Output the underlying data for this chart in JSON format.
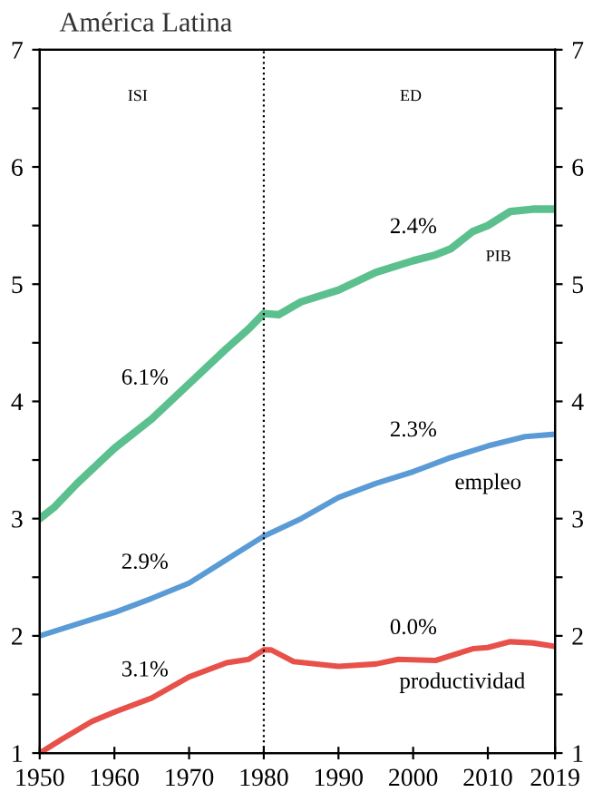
{
  "chart_data": {
    "type": "line",
    "title": "América Latina",
    "x": [
      1950,
      1952,
      1955,
      1960,
      1965,
      1970,
      1975,
      1978,
      1980,
      1982,
      1985,
      1990,
      1995,
      2000,
      2003,
      2005,
      2008,
      2010,
      2013,
      2016,
      2019
    ],
    "series": [
      {
        "color": "#5cc08e",
        "values": [
          3.0,
          3.1,
          3.3,
          3.6,
          3.85,
          4.15,
          4.45,
          4.62,
          4.75,
          4.74,
          4.85,
          4.95,
          5.1,
          5.2,
          5.25,
          5.3,
          5.45,
          5.5,
          5.62,
          5.64,
          5.64
        ]
      },
      {
        "color": "#5b9bd5",
        "x": [
          1950,
          1955,
          1960,
          1965,
          1970,
          1975,
          1980,
          1985,
          1990,
          1995,
          2000,
          2005,
          2010,
          2015,
          2019
        ],
        "values": [
          2.0,
          2.1,
          2.2,
          2.32,
          2.45,
          2.65,
          2.85,
          3.0,
          3.18,
          3.3,
          3.4,
          3.52,
          3.62,
          3.7,
          3.72
        ]
      },
      {
        "color": "#e8504a",
        "x": [
          1950,
          1953,
          1957,
          1960,
          1965,
          1970,
          1975,
          1978,
          1980,
          1981,
          1984,
          1990,
          1995,
          1998,
          2003,
          2008,
          2010,
          2013,
          2016,
          2019
        ],
        "values": [
          1.0,
          1.12,
          1.27,
          1.35,
          1.47,
          1.65,
          1.77,
          1.8,
          1.88,
          1.88,
          1.78,
          1.74,
          1.76,
          1.8,
          1.79,
          1.89,
          1.9,
          1.95,
          1.94,
          1.91
        ]
      }
    ],
    "xlim": [
      1950,
      2019
    ],
    "xticks": [
      1950,
      1960,
      1970,
      1980,
      1990,
      2000,
      2010,
      2019
    ],
    "ylim": [
      1,
      7
    ],
    "yticks": [
      1,
      {
        "value": 1.5,
        "label": null
      },
      2,
      {
        "value": 2.5,
        "label": null
      },
      3,
      {
        "value": 3.5,
        "label": null
      },
      4,
      {
        "value": 4.5,
        "label": null
      },
      5,
      {
        "value": 5.5,
        "label": null
      },
      6,
      {
        "value": 6.5,
        "label": null
      },
      7
    ],
    "y2lim": [
      1,
      7
    ],
    "y2ticks": [
      1,
      {
        "value": 1.5,
        "label": null
      },
      2,
      {
        "value": 2.5,
        "label": null
      },
      3,
      {
        "value": 3.5,
        "label": null
      },
      4,
      {
        "value": 4.5,
        "label": null
      },
      5,
      {
        "value": 5.5,
        "label": null
      },
      6,
      {
        "value": 6.5,
        "label": null
      },
      7
    ],
    "ref_lines": [
      {
        "axis": "x",
        "value": 1980,
        "color": "#000000",
        "line_style": "dotted"
      }
    ],
    "annotations": [
      "ISI",
      "ED",
      "6.1%",
      "2.4%",
      "PIB",
      "2.3%",
      "empleo",
      "2.9%",
      "0.0%",
      "3.1%",
      "productividad"
    ],
    "grid": false
  }
}
